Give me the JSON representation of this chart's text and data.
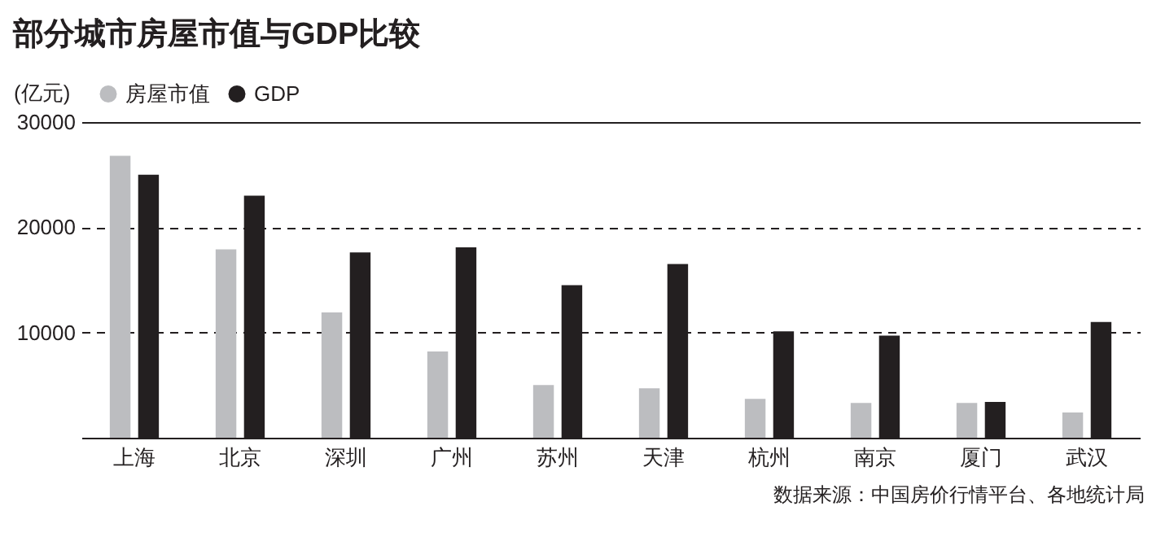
{
  "chart_data": {
    "type": "bar",
    "title": "部分城市房屋市值与GDP比较",
    "ylabel": "(亿元)",
    "categories": [
      "上海",
      "北京",
      "深圳",
      "广州",
      "苏州",
      "天津",
      "杭州",
      "南京",
      "厦门",
      "武汉"
    ],
    "series": [
      {
        "name": "房屋市值",
        "color": "#bcbdc0",
        "values": [
          26800,
          17900,
          11900,
          8200,
          5000,
          4700,
          3700,
          3300,
          3300,
          2400
        ]
      },
      {
        "name": "GDP",
        "color": "#231f20",
        "values": [
          25000,
          23000,
          17600,
          18100,
          14500,
          16500,
          10100,
          9700,
          3400,
          11000
        ]
      }
    ],
    "ylim": [
      0,
      30000
    ],
    "yticks": [
      {
        "value": 0,
        "label": null
      },
      10000,
      20000,
      30000
    ],
    "grid": "y",
    "legend": "top left",
    "annotations": [
      "数据来源：中国房价行情平台、各地统计局"
    ]
  }
}
